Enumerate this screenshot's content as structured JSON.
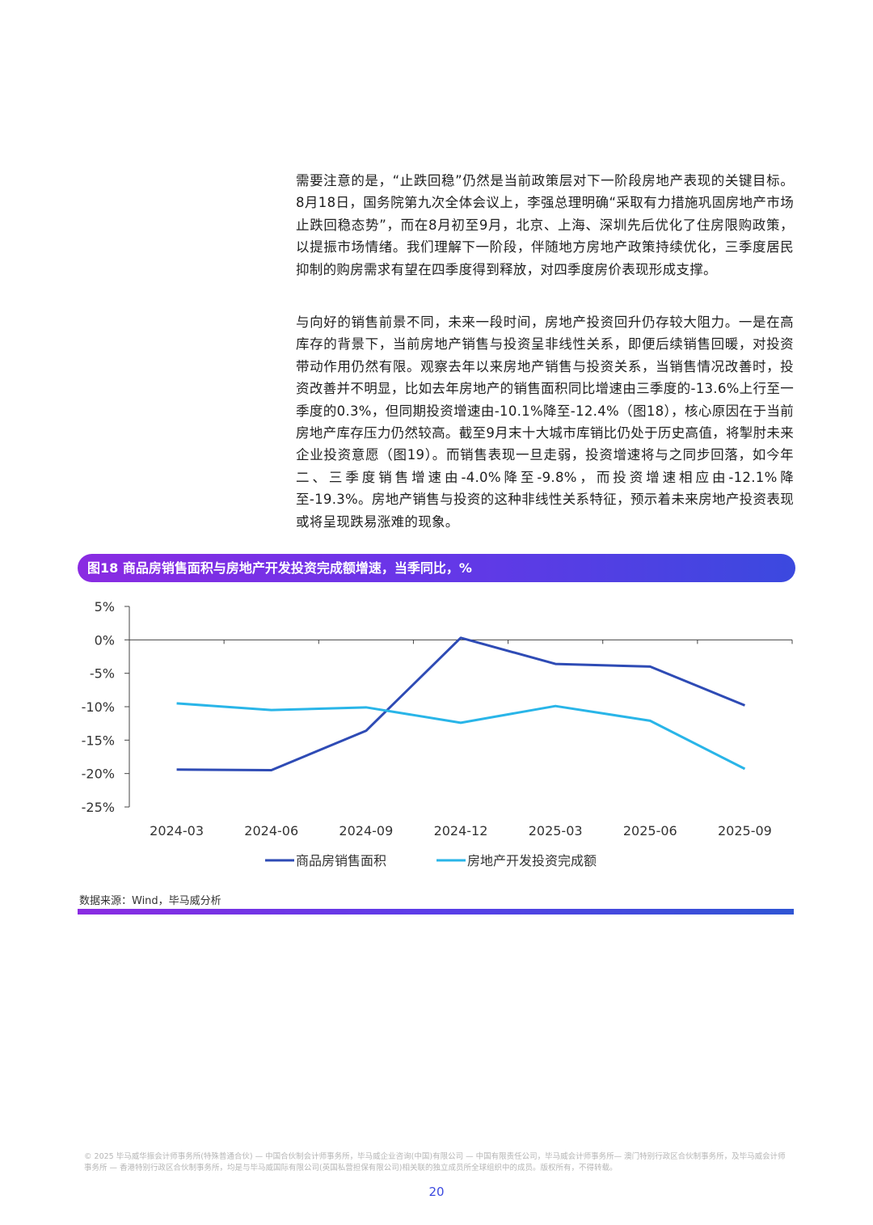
{
  "paragraphs": [
    "需要注意的是，“止跌回稳”仍然是当前政策层对下一阶段房地产表现的关键目标。8月18日，国务院第九次全体会议上，李强总理明确“采取有力措施巩固房地产市场止跌回稳态势”，而在8月初至9月，北京、上海、深圳先后优化了住房限购政策，以提振市场情绪。我们理解下一阶段，伴随地方房地产政策持续优化，三季度居民抑制的购房需求有望在四季度得到释放，对四季度房价表现形成支撑。",
    "与向好的销售前景不同，未来一段时间，房地产投资回升仍存较大阻力。一是在高库存的背景下，当前房地产销售与投资呈非线性关系，即便后续销售回暖，对投资带动作用仍然有限。观察去年以来房地产销售与投资关系，当销售情况改善时，投资改善并不明显，比如去年房地产的销售面积同比增速由三季度的-13.6%上行至一季度的0.3%，但同期投资增速由-10.1%降至-12.4%（图18），核心原因在于当前房地产库存压力仍然较高。截至9月末十大城市库销比仍处于历史高值，将掣肘未来企业投资意愿（图19）。而销售表现一旦走弱，投资增速将与之同步回落，如今年二、三季度销售增速由-4.0%降至-9.8%，而投资增速相应由-12.1%降至-19.3%。房地产销售与投资的这种非线性关系特征，预示着未来房地产投资表现或将呈现跌易涨难的现象。"
  ],
  "figure_title": "图18 商品房销售面积与房地产开发投资完成额增速，当季同比，%",
  "source": "数据来源：Wind，毕马威分析",
  "footer": "© 2025 毕马威华振会计师事务所(特殊普通合伙) — 中国合伙制会计师事务所，毕马威企业咨询(中国)有限公司 — 中国有限责任公司，毕马威会计师事务所— 澳门特别行政区合伙制事务所，及毕马威会计师事务所 — 香港特别行政区合伙制事务所，均是与毕马威国际有限公司(英国私营担保有限公司)相关联的独立成员所全球组织中的成员。版权所有，不得转载。",
  "page_number": "20",
  "chart_data": {
    "type": "line",
    "categories": [
      "2024-03",
      "2024-06",
      "2024-09",
      "2024-12",
      "2025-03",
      "2025-06",
      "2025-09"
    ],
    "series": [
      {
        "name": "商品房销售面积",
        "color": "#2e4bb5",
        "values": [
          -19.4,
          -19.5,
          -13.6,
          0.3,
          -3.6,
          -4.0,
          -9.8
        ]
      },
      {
        "name": "房地产开发投资完成额",
        "color": "#29b5e8",
        "values": [
          -9.5,
          -10.5,
          -10.1,
          -12.4,
          -9.9,
          -12.1,
          -19.3
        ]
      }
    ],
    "ylim": [
      -25,
      5
    ],
    "yticks": [
      5,
      0,
      -5,
      -10,
      -15,
      -20,
      -25
    ],
    "ytick_labels": [
      "5%",
      "0%",
      "-5%",
      "-10%",
      "-15%",
      "-20%",
      "-25%"
    ],
    "legend_position": "bottom"
  }
}
